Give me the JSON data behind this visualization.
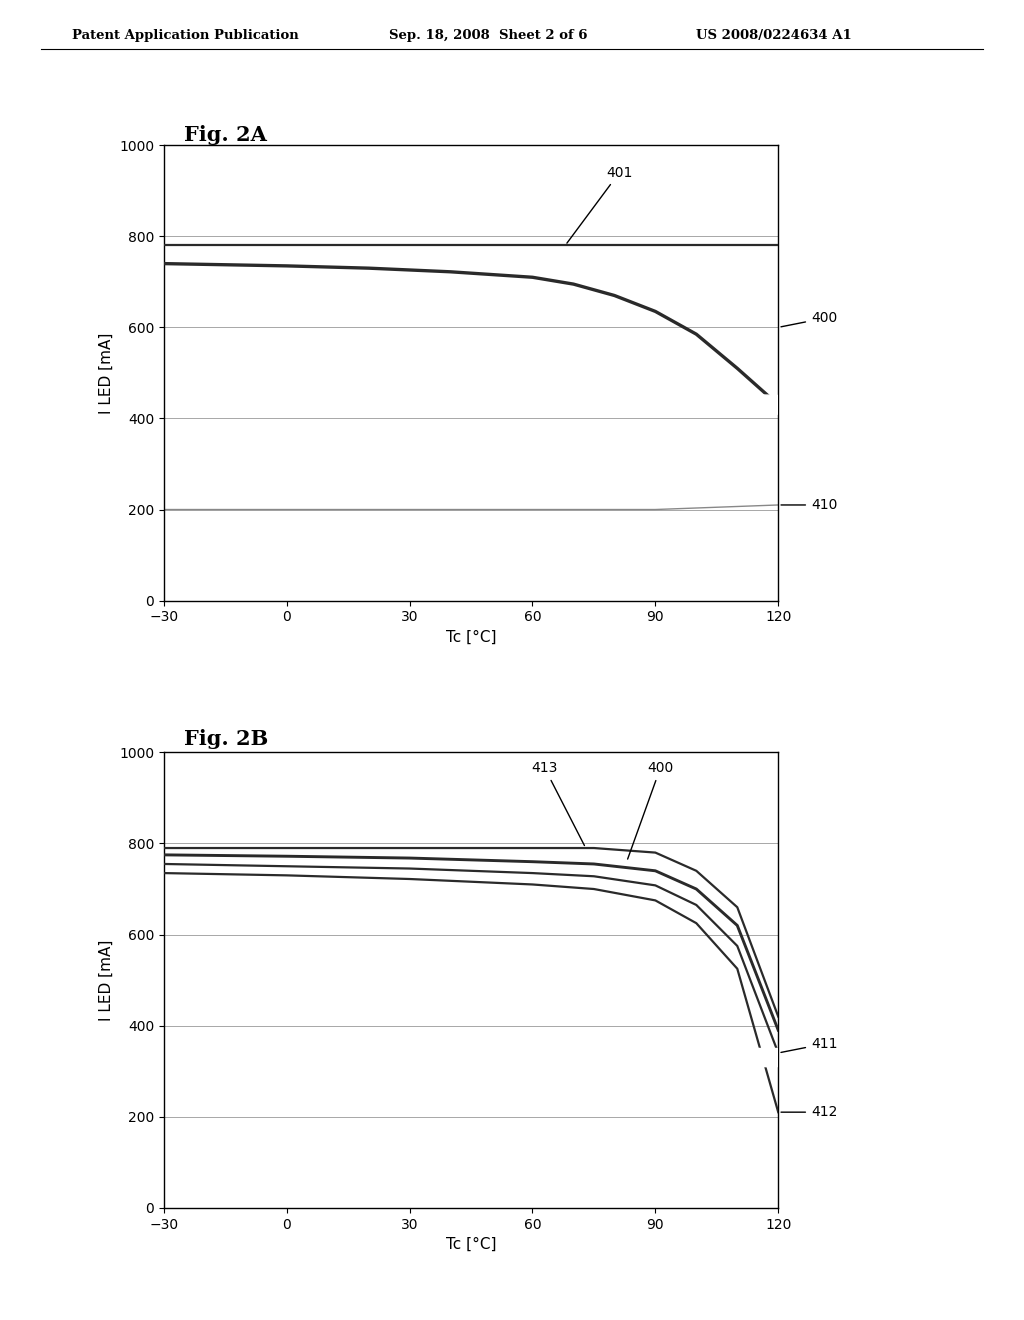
{
  "background_color": "#ffffff",
  "header_left": "Patent Application Publication",
  "header_center": "Sep. 18, 2008  Sheet 2 of 6",
  "header_right": "US 2008/0224634 A1",
  "fig2a_title": "Fig. 2A",
  "fig2b_title": "Fig. 2B",
  "xlabel": "Tc [°C]",
  "ylabel": "I LED [mA]",
  "xlim": [
    -30,
    120
  ],
  "ylim": [
    0,
    1000
  ],
  "xticks": [
    -30,
    0,
    30,
    60,
    90,
    120
  ],
  "yticks": [
    0,
    200,
    400,
    600,
    800,
    1000
  ],
  "fig2a_curve401_x": [
    -30,
    0,
    30,
    60,
    70,
    80,
    90,
    100,
    110,
    120
  ],
  "fig2a_curve401_y": [
    780,
    780,
    780,
    780,
    780,
    780,
    780,
    780,
    780,
    780
  ],
  "fig2a_curve400_x": [
    -30,
    0,
    20,
    40,
    60,
    70,
    80,
    90,
    100,
    110,
    120
  ],
  "fig2a_curve400_y": [
    740,
    735,
    730,
    722,
    710,
    695,
    670,
    635,
    585,
    510,
    430
  ],
  "fig2a_curve410_x": [
    -30,
    0,
    30,
    60,
    90,
    120
  ],
  "fig2a_curve410_y": [
    200,
    200,
    200,
    200,
    200,
    210
  ],
  "fig2b_curve413_x": [
    -30,
    0,
    30,
    60,
    75,
    90,
    100,
    110,
    120
  ],
  "fig2b_curve413_y": [
    790,
    790,
    790,
    790,
    790,
    780,
    740,
    660,
    420
  ],
  "fig2b_curve400_x": [
    -30,
    0,
    30,
    60,
    75,
    90,
    100,
    110,
    120
  ],
  "fig2b_curve400_y": [
    775,
    772,
    768,
    760,
    755,
    740,
    700,
    620,
    390
  ],
  "fig2b_curve411_x": [
    -30,
    0,
    30,
    60,
    75,
    90,
    100,
    110,
    120
  ],
  "fig2b_curve411_y": [
    755,
    750,
    745,
    735,
    728,
    708,
    665,
    575,
    340
  ],
  "fig2b_curve412_x": [
    -30,
    0,
    30,
    60,
    75,
    90,
    100,
    110,
    120
  ],
  "fig2b_curve412_y": [
    735,
    730,
    722,
    710,
    700,
    675,
    625,
    525,
    210
  ],
  "line_color": "#2a2a2a",
  "line_color_light": "#888888",
  "line_width": 1.6,
  "grid_color": "#999999",
  "annotation_fontsize": 10,
  "title_fontsize": 15,
  "tick_fontsize": 10,
  "label_fontsize": 11
}
